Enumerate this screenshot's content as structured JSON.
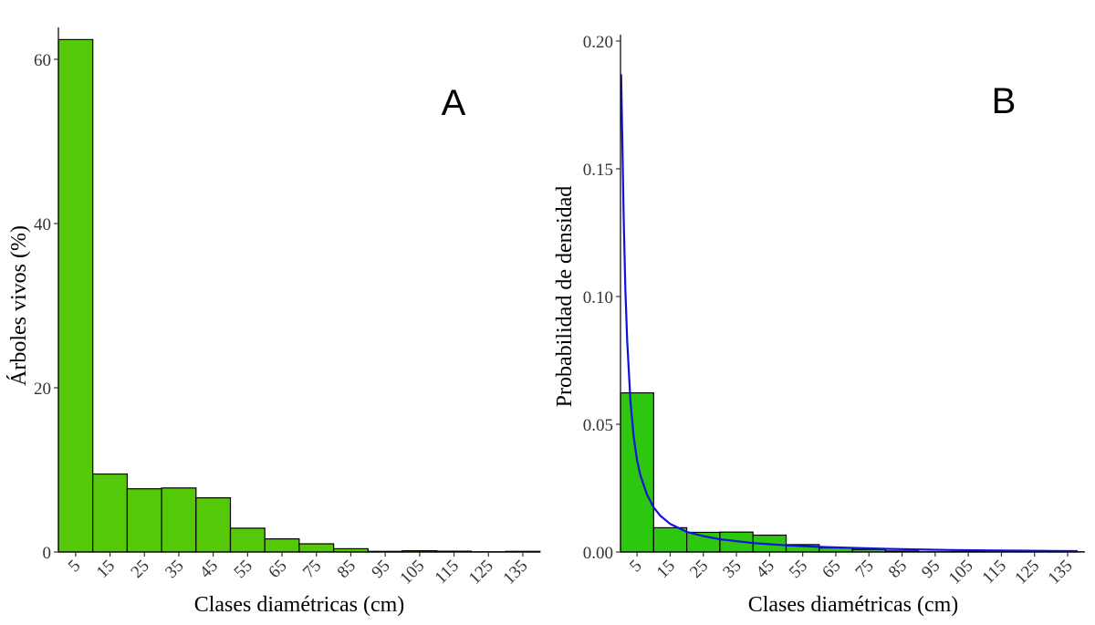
{
  "chart_data": [
    {
      "panel": "A",
      "type": "bar",
      "title": "",
      "xlabel": "Clases diamétricas (cm)",
      "ylabel": "Árboles vivos (%)",
      "categories": [
        "5",
        "15",
        "25",
        "35",
        "45",
        "55",
        "65",
        "75",
        "85",
        "95",
        "105",
        "115",
        "125",
        "135"
      ],
      "values": [
        62.4,
        9.5,
        7.7,
        7.8,
        6.6,
        2.9,
        1.6,
        1.0,
        0.4,
        0.08,
        0.15,
        0.1,
        0.03,
        0.08
      ],
      "yticks": [
        "0",
        "20",
        "40",
        "60"
      ],
      "ylim": [
        0,
        64
      ],
      "grid": false,
      "bar_color": "#55c80a"
    },
    {
      "panel": "B",
      "type": "bar",
      "title": "",
      "xlabel": "Clases diamétricas (cm)",
      "ylabel": "Probabilidad de densidad",
      "categories": [
        "5",
        "15",
        "25",
        "35",
        "45",
        "55",
        "65",
        "75",
        "85",
        "95",
        "105",
        "115",
        "125",
        "135"
      ],
      "values": [
        0.0623,
        0.0095,
        0.0077,
        0.0078,
        0.0066,
        0.0029,
        0.0016,
        0.001,
        0.0004,
        0.0001,
        0.00015,
        0.0001,
        3e-05,
        0.0001
      ],
      "yticks": [
        "0.00",
        "0.05",
        "0.10",
        "0.15",
        "0.20"
      ],
      "ylim": [
        0,
        0.2
      ],
      "grid": false,
      "bar_color": "#2ec70f",
      "density_curve": {
        "color": "#1010e0",
        "x": [
          0.2,
          0.5,
          1,
          1.5,
          2,
          3,
          4,
          5,
          6,
          8,
          10,
          12,
          15,
          20,
          25,
          30,
          40,
          50,
          60,
          70,
          80,
          90,
          100,
          110,
          120,
          130,
          138
        ],
        "y": [
          0.187,
          0.165,
          0.129,
          0.102,
          0.083,
          0.059,
          0.045,
          0.036,
          0.03,
          0.0225,
          0.0175,
          0.0142,
          0.011,
          0.0079,
          0.0062,
          0.005,
          0.0035,
          0.0026,
          0.002,
          0.0016,
          0.00125,
          0.001,
          0.0008,
          0.00065,
          0.00052,
          0.00042,
          0.00035
        ]
      }
    }
  ]
}
